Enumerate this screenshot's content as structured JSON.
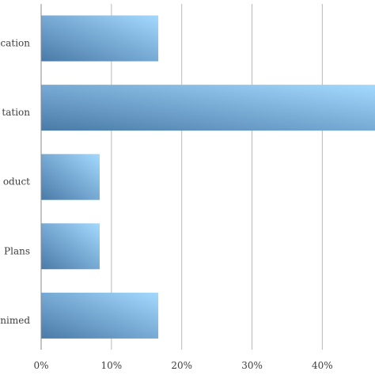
{
  "chart_data": {
    "type": "bar",
    "orientation": "horizontal",
    "categories": [
      "ication",
      "tation",
      "oduct",
      "Plans",
      "nimed"
    ],
    "values": [
      16.67,
      47.5,
      8.33,
      8.33,
      16.67
    ],
    "xlim": [
      0,
      47.5
    ],
    "xticks": [
      0,
      10,
      20,
      30,
      40
    ],
    "xtick_labels": [
      "0%",
      "10%",
      "20%",
      "30%",
      "40%"
    ],
    "grid": "vertical",
    "title": "",
    "xlabel": "",
    "ylabel": "",
    "bar_gradient": [
      "#4a7ba8",
      "#a4d9ff"
    ],
    "gridline_color": "#b9b9b9"
  }
}
